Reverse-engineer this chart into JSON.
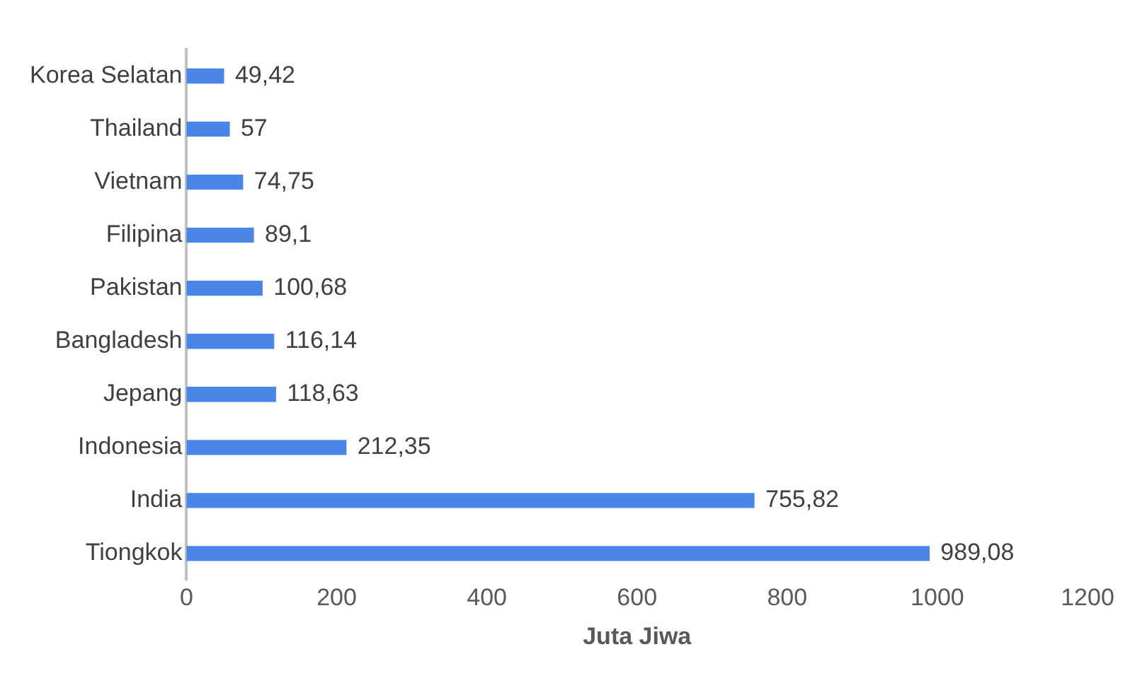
{
  "chart_data": {
    "type": "bar",
    "orientation": "horizontal",
    "xlabel": "Juta Jiwa",
    "categories": [
      "Korea Selatan",
      "Thailand",
      "Vietnam",
      "Filipina",
      "Pakistan",
      "Bangladesh",
      "Jepang",
      "Indonesia",
      "India",
      "Tiongkok"
    ],
    "values": [
      49.42,
      57,
      74.75,
      89.1,
      100.68,
      116.14,
      118.63,
      212.35,
      755.82,
      989.08
    ],
    "value_labels": [
      "49,42",
      "57",
      "74,75",
      "89,1",
      "100,68",
      "116,14",
      "118,63",
      "212,35",
      "755,82",
      "989,08"
    ],
    "color": "#4a86e8",
    "xlim": [
      0,
      1200
    ],
    "xticks": [
      0,
      200,
      400,
      600,
      800,
      1000,
      1200
    ],
    "grid": false,
    "legend": false
  }
}
